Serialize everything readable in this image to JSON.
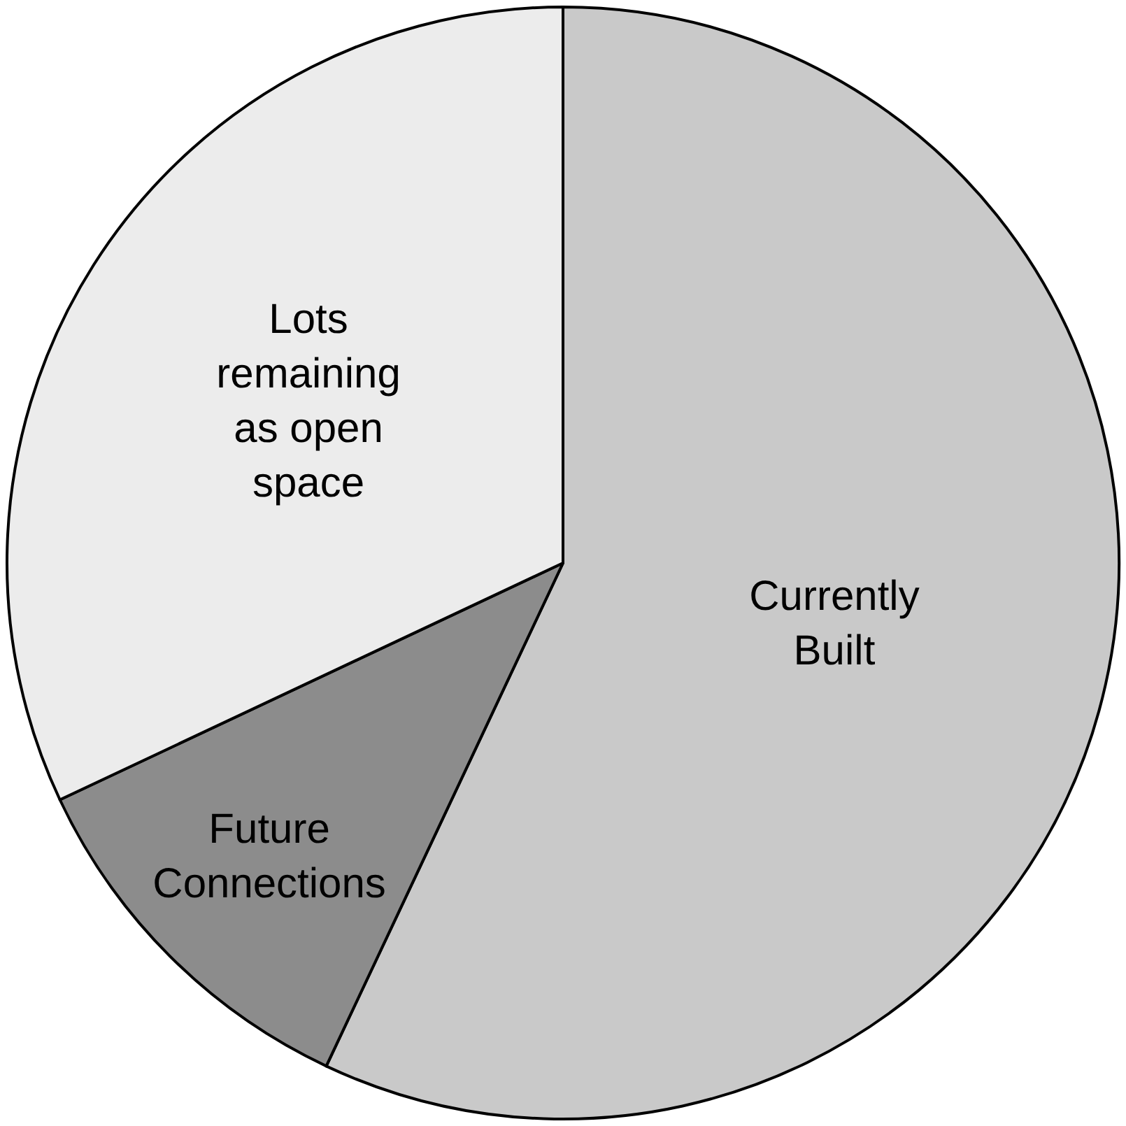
{
  "chart_data": {
    "type": "pie",
    "categories": [
      "Currently Built",
      "Future Connections",
      "Lots remaining as open space"
    ],
    "values": [
      57,
      11,
      32
    ],
    "colors": [
      "#c9c9c9",
      "#8c8c8c",
      "#ececec"
    ],
    "legend": false
  }
}
